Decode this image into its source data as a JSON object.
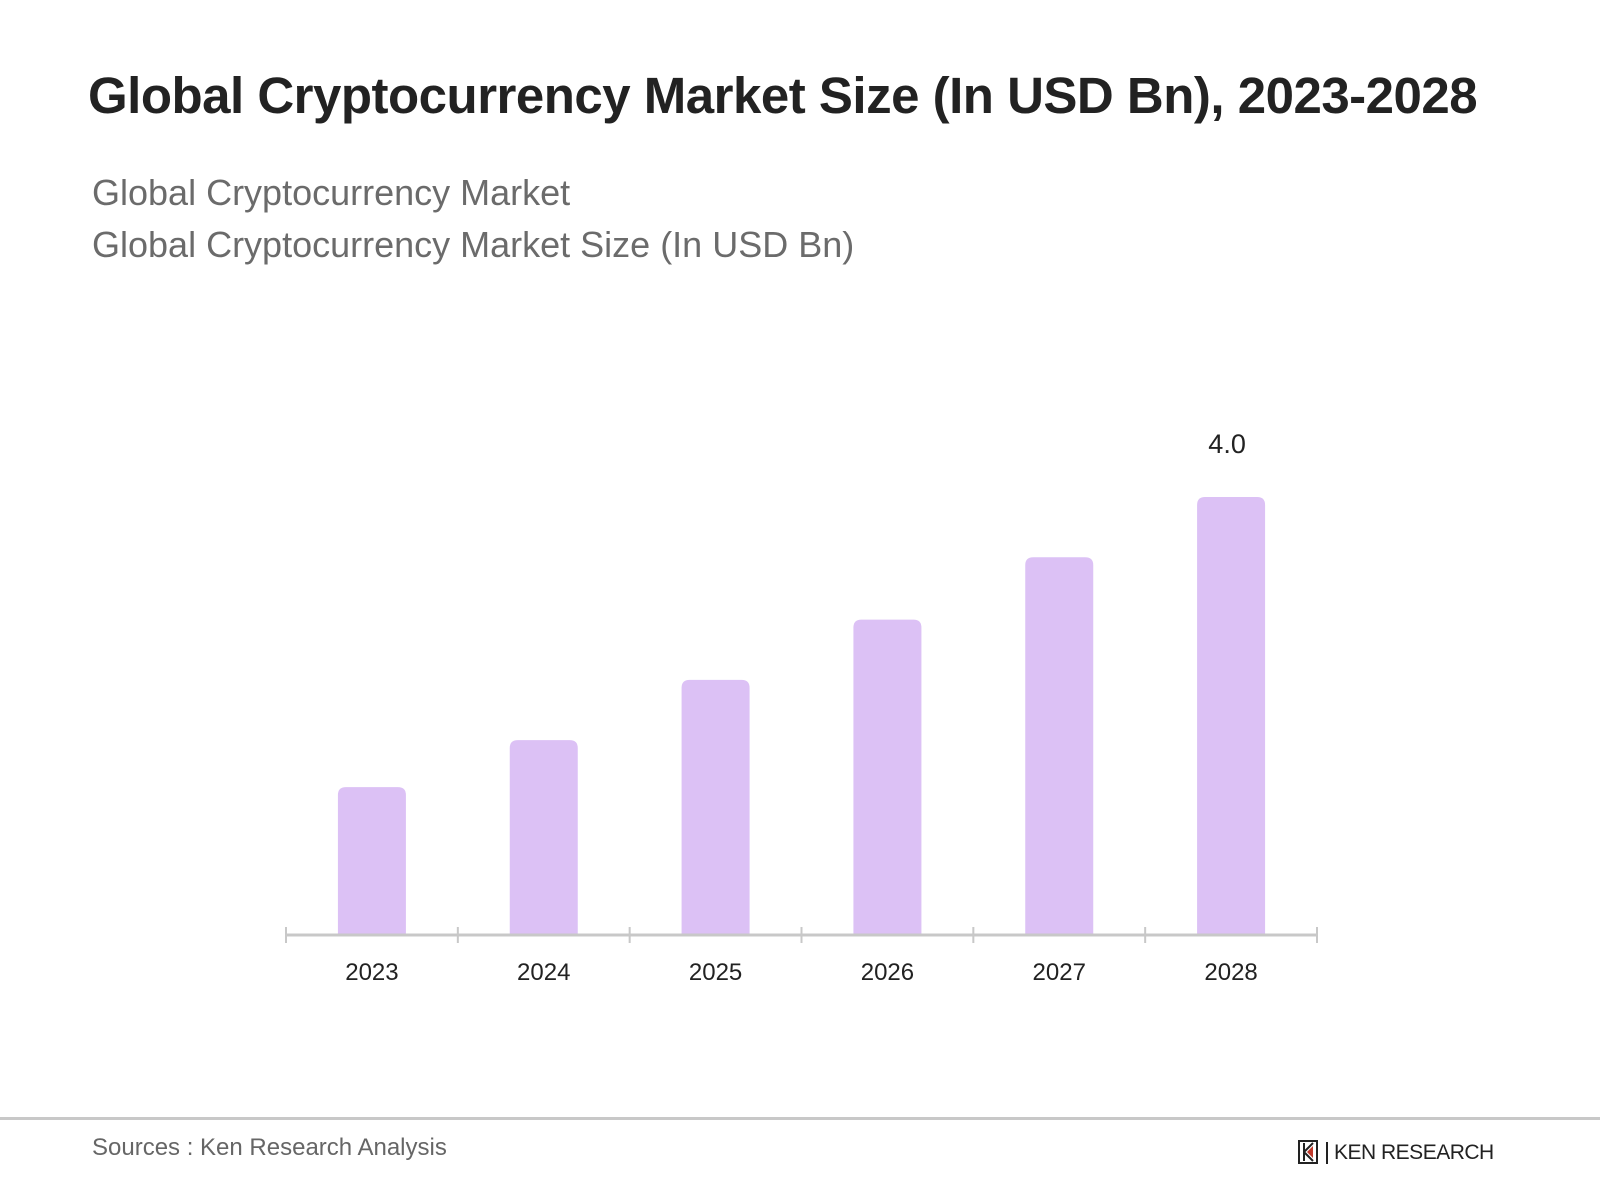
{
  "title": "Global Cryptocurrency Market Size (In USD Bn), 2023-2028",
  "subtitle1": "Global Cryptocurrency Market",
  "subtitle2": "Global Cryptocurrency Market Size (In USD Bn)",
  "source": "Sources : Ken Research Analysis",
  "logo_text": "KEN RESEARCH",
  "chart_data": {
    "type": "bar",
    "categories": [
      "2023",
      "2024",
      "2025",
      "2026",
      "2027",
      "2028"
    ],
    "values": [
      1.35,
      1.78,
      2.33,
      2.88,
      3.45,
      4.0
    ],
    "data_labels": [
      "",
      "",
      "",
      "",
      "",
      "4.0"
    ],
    "ylim": [
      0,
      4.0
    ],
    "grid": false,
    "bar_color": "#dcc1f5",
    "axis_color": "#c8c8c8"
  }
}
